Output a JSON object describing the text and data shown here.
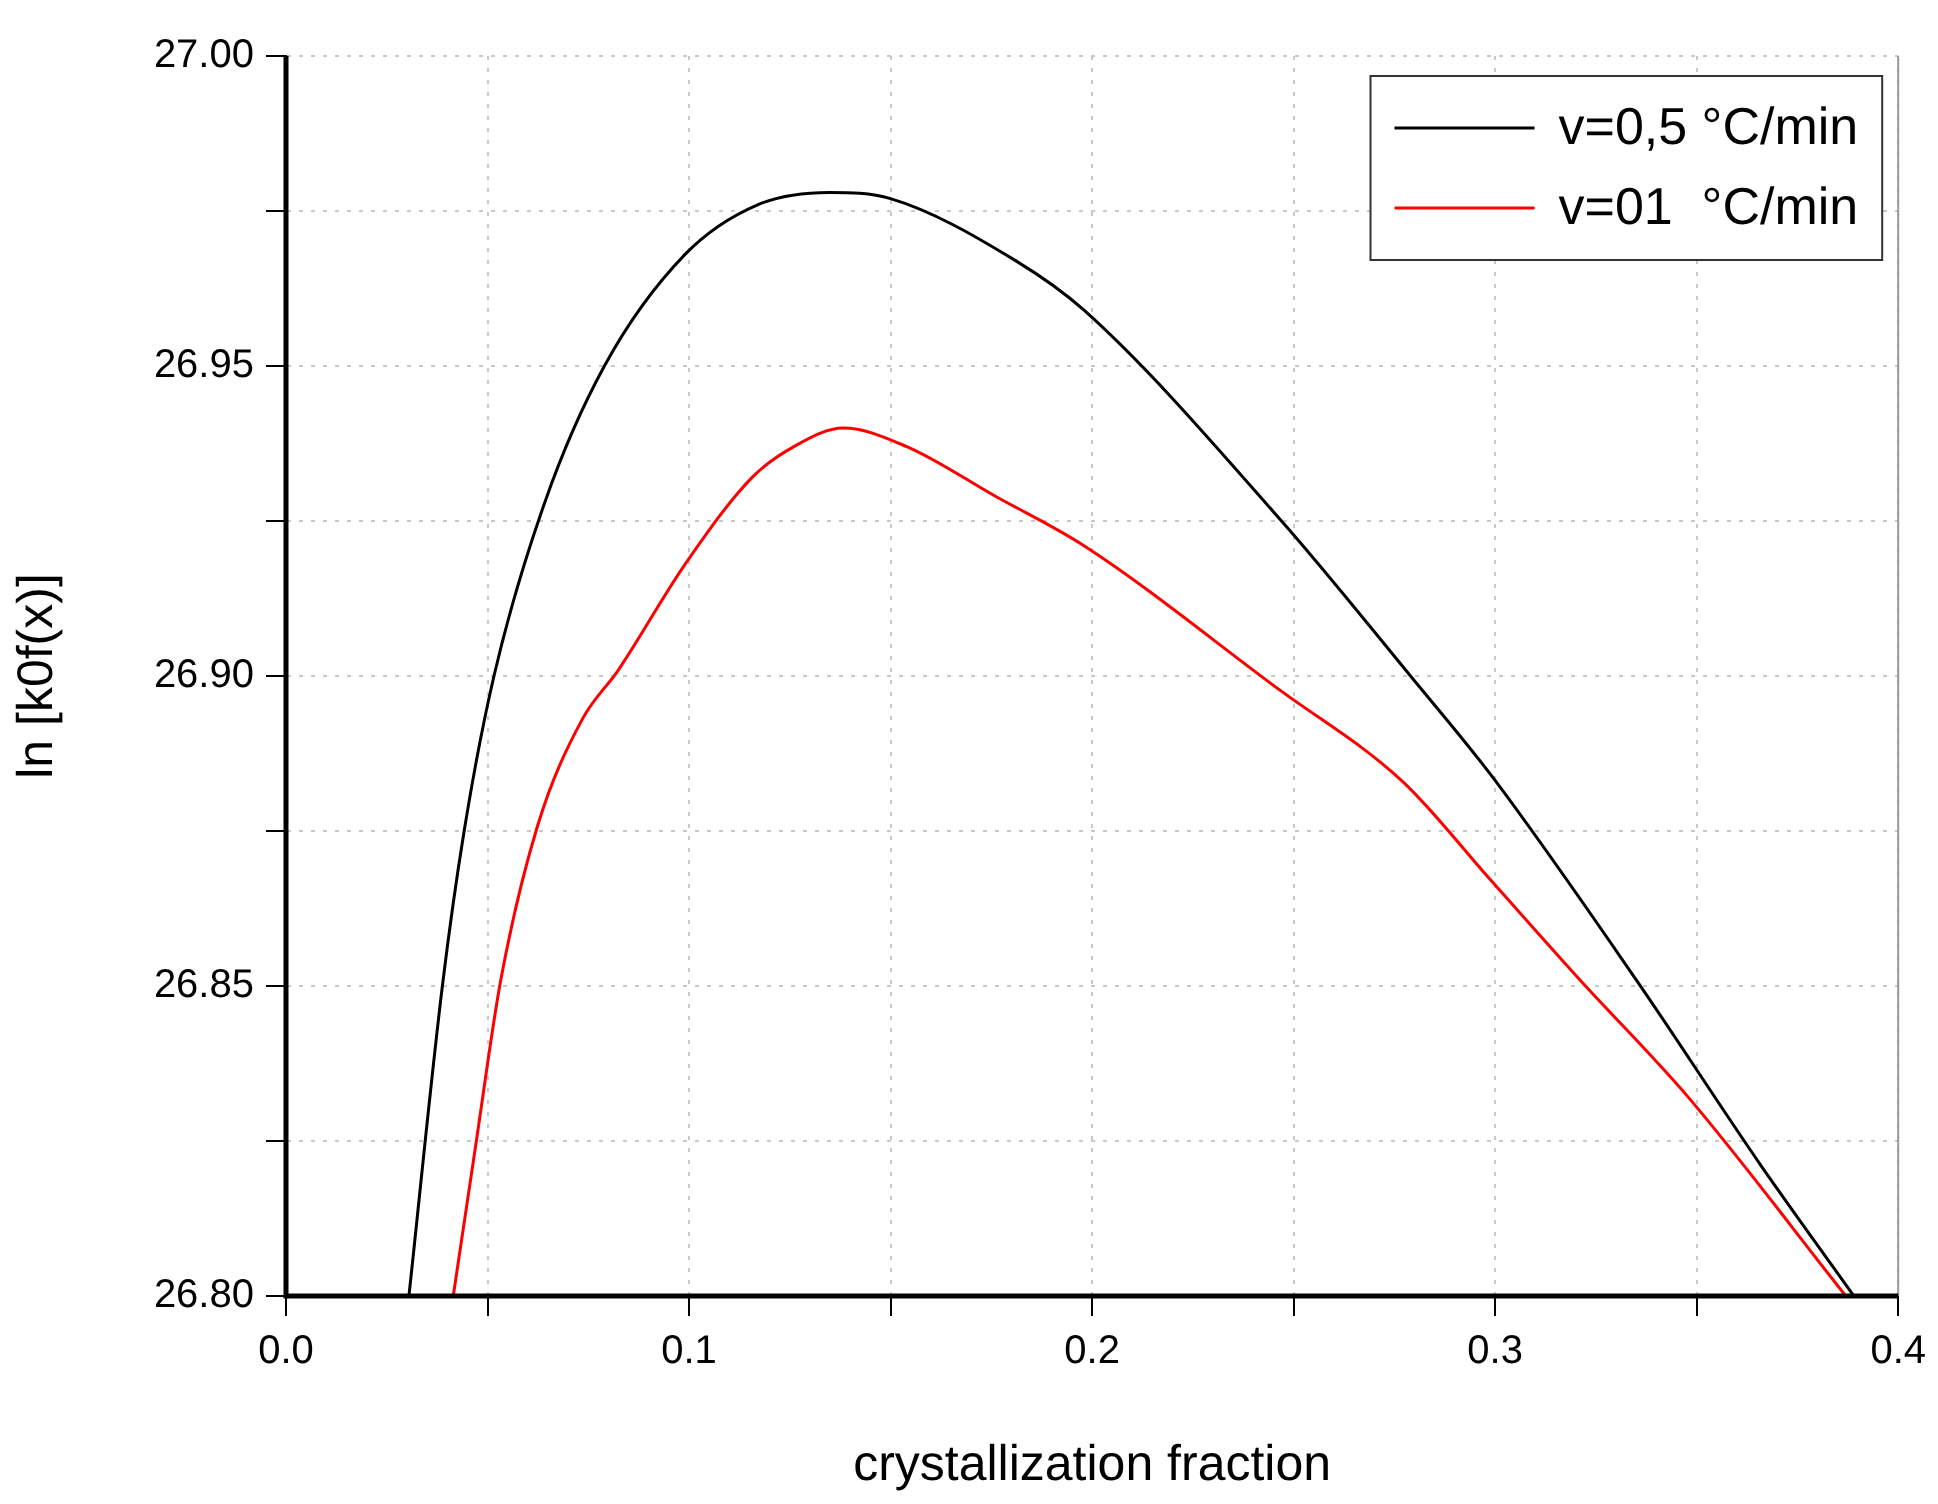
{
  "chart_data": {
    "type": "line",
    "xlabel": "crystallization fraction",
    "ylabel": "ln [k0f(x)]",
    "xlim": [
      0,
      0.4
    ],
    "xticks": [
      {
        "value": 0,
        "label": "0.0"
      },
      {
        "value": 0.05,
        "label": null
      },
      0.1,
      {
        "value": 0.15,
        "label": null
      },
      0.2,
      {
        "value": 0.25,
        "label": null
      },
      0.3,
      {
        "value": 0.35,
        "label": null
      },
      0.4
    ],
    "ylim": [
      26.8,
      27.0
    ],
    "yticks": [
      {
        "value": 26.8,
        "label": "26.80"
      },
      {
        "value": 26.825,
        "label": null
      },
      {
        "value": 26.85,
        "label": "26.85"
      },
      {
        "value": 26.875,
        "label": null
      },
      {
        "value": 26.9,
        "label": "26.90"
      },
      {
        "value": 26.925,
        "label": null
      },
      {
        "value": 26.95,
        "label": "26.95"
      },
      {
        "value": 26.975,
        "label": null
      },
      {
        "value": 27.0,
        "label": "27.00"
      }
    ],
    "grid": true,
    "legend": "top right",
    "marker": "none",
    "line_style": "solid",
    "series": [
      {
        "name": "v=0,5 °C/min",
        "color": "#000000",
        "x": [
          0.0305,
          0.0388,
          0.0442,
          0.0516,
          0.0642,
          0.079,
          0.099,
          0.117,
          0.1348,
          0.15,
          0.181,
          0.198,
          0.247,
          0.279,
          0.299,
          0.335,
          0.366,
          0.389
        ],
        "values": [
          26.8,
          26.85,
          26.875,
          26.9,
          26.928,
          26.95,
          26.968,
          26.976,
          26.978,
          26.977,
          26.967,
          26.959,
          26.925,
          26.9,
          26.884,
          26.851,
          26.821,
          26.8
        ]
      },
      {
        "name": "v=01  °C/min",
        "color": "#ff0000",
        "x": [
          0.0415,
          0.047,
          0.0533,
          0.0625,
          0.0735,
          0.0825,
          0.099,
          0.1156,
          0.126,
          0.1383,
          0.154,
          0.176,
          0.198,
          0.246,
          0.277,
          0.299,
          0.321,
          0.348,
          0.387
        ],
        "values": [
          26.8,
          26.824,
          26.851,
          26.876,
          26.893,
          26.901,
          26.918,
          26.932,
          26.937,
          26.94,
          26.937,
          26.929,
          26.921,
          26.898,
          26.883,
          26.867,
          26.851,
          26.832,
          26.8
        ]
      }
    ]
  }
}
